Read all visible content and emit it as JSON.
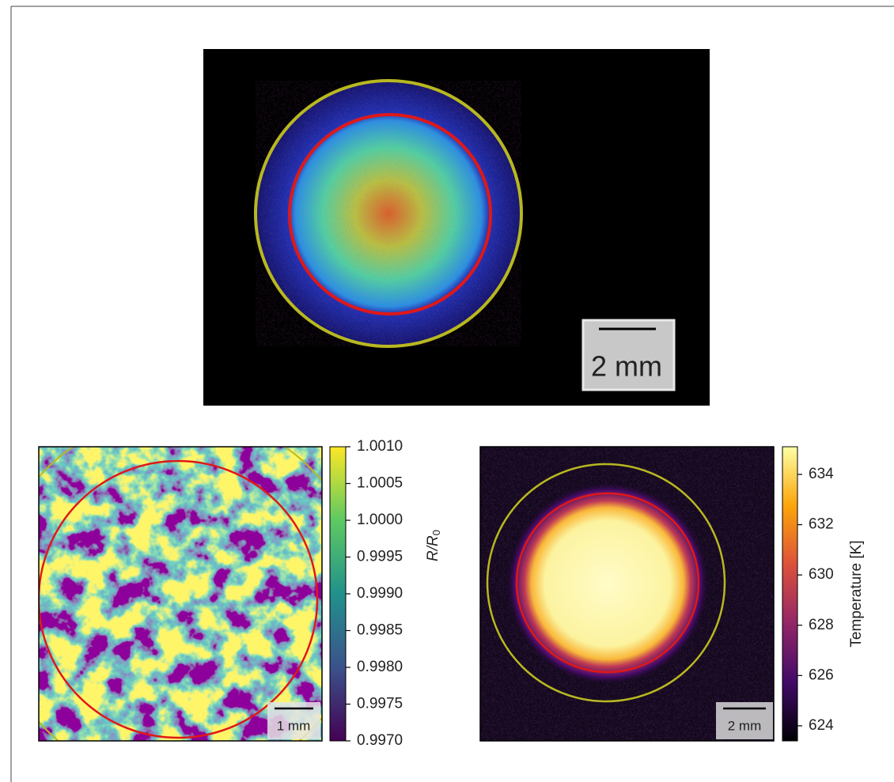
{
  "chart_data": [
    {
      "type": "image",
      "scale_bar": "2 mm"
    },
    {
      "type": "heatmap",
      "scale_bar": "1 mm",
      "colormap": "viridis",
      "colorbar": {
        "label": "R/R",
        "label_sub": "0",
        "lim": [
          0.997,
          1.001
        ],
        "ticks": [
          {
            "value": 1.001,
            "label": "1.0010"
          },
          {
            "value": 1.0005,
            "label": "1.0005"
          },
          {
            "value": 1,
            "label": "1.0000"
          },
          {
            "value": 0.9995,
            "label": "0.9995"
          },
          {
            "value": 0.999,
            "label": "0.9990"
          },
          {
            "value": 0.9985,
            "label": "0.9985"
          },
          {
            "value": 0.998,
            "label": "0.9980"
          },
          {
            "value": 0.9975,
            "label": "0.9975"
          },
          {
            "value": 0.997,
            "label": "0.9970"
          }
        ]
      }
    },
    {
      "type": "heatmap",
      "scale_bar": "2 mm",
      "colormap": "inferno",
      "colorbar": {
        "label": "Temperature [K]",
        "lim": [
          623.4,
          635.1
        ],
        "ticks": [
          624,
          626,
          628,
          630,
          632,
          634
        ]
      }
    }
  ]
}
